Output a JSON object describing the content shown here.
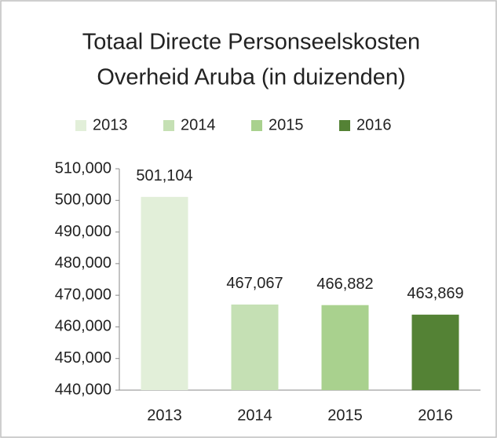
{
  "chart_data": {
    "type": "bar",
    "title": [
      "Totaal Directe Personseelskosten",
      "Overheid Aruba (in duizenden)"
    ],
    "categories": [
      "2013",
      "2014",
      "2015",
      "2016"
    ],
    "values": [
      501104,
      467067,
      466882,
      463869
    ],
    "value_labels": [
      "501,104",
      "467,067",
      "466,882",
      "463,869"
    ],
    "colors": [
      "#e2efd9",
      "#c5e0b4",
      "#a9d18e",
      "#548235"
    ],
    "legend": "top",
    "ylim": [
      440000,
      510000
    ],
    "yticks": [
      {
        "value": 440000,
        "label": "440,000"
      },
      {
        "value": 450000,
        "label": "450,000"
      },
      {
        "value": 460000,
        "label": "460,000"
      },
      {
        "value": 470000,
        "label": "470,000"
      },
      {
        "value": 480000,
        "label": "480,000"
      },
      {
        "value": 490000,
        "label": "490,000"
      },
      {
        "value": 500000,
        "label": "500,000"
      },
      {
        "value": 510000,
        "label": "510,000"
      }
    ],
    "grid": false
  }
}
